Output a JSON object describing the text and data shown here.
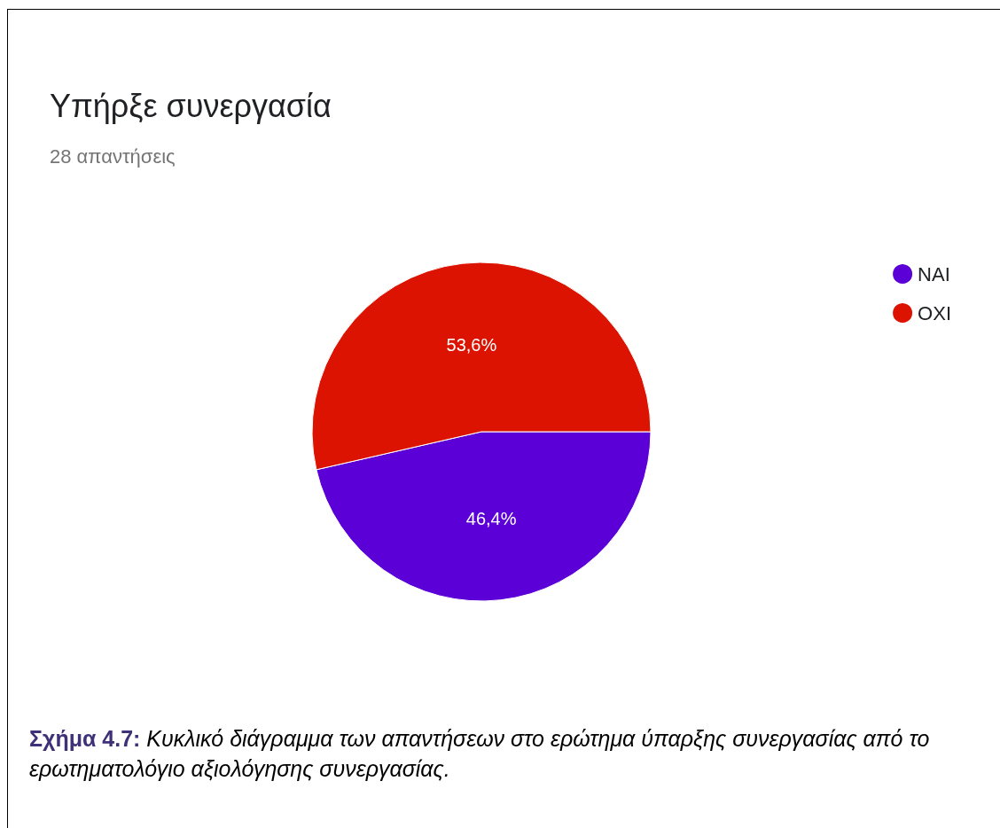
{
  "chart_data": {
    "type": "pie",
    "title": "Υπήρξε συνεργασία",
    "subtitle": "28 απαντήσεις",
    "categories": [
      "NAI",
      "OXI"
    ],
    "values": [
      46.4,
      53.6
    ],
    "colors": [
      "#5b00d6",
      "#db1300"
    ],
    "value_labels": [
      "46,4%",
      "53,6%"
    ],
    "legend": "right",
    "annotations": [
      "Σχήμα 4.7:",
      "Κυκλικό διάγραμμα των απαντήσεων στο ερώτημα ύπαρξης συνεργασίας από το ερωτηματολόγιο αξιολόγησης συνεργασίας."
    ]
  }
}
